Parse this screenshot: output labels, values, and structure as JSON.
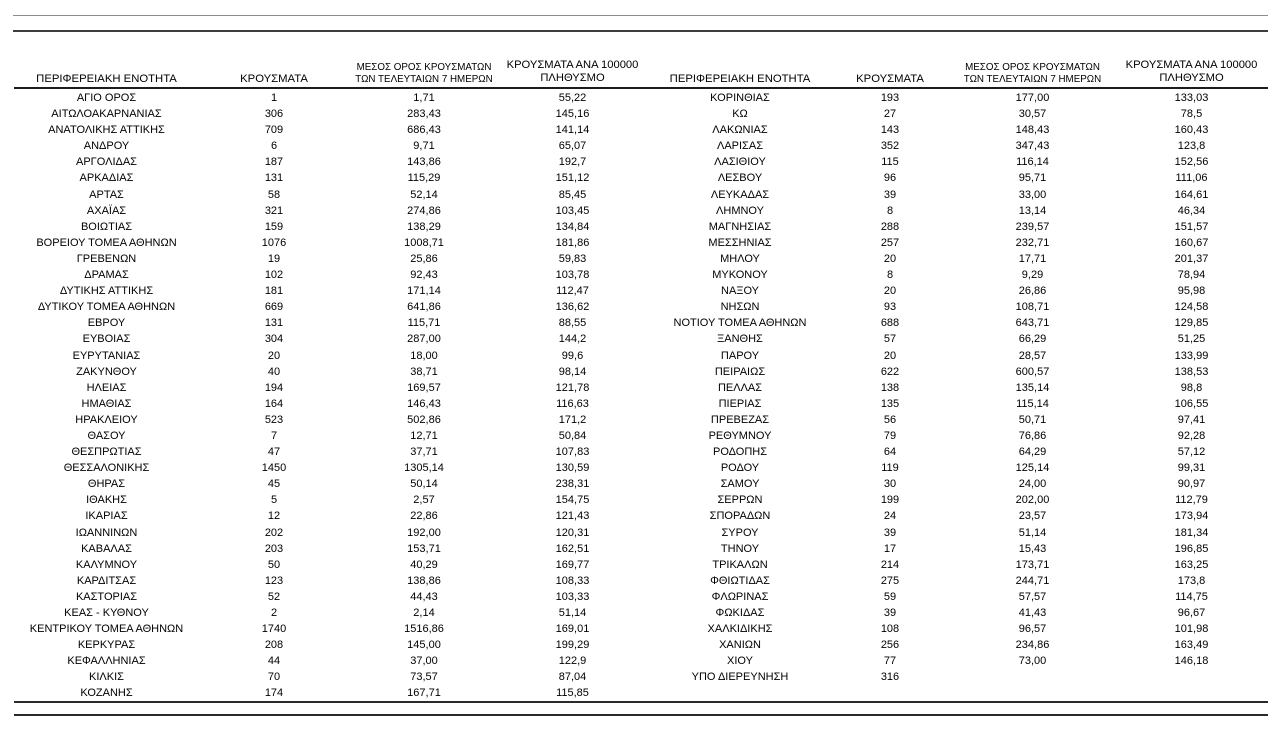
{
  "page": {
    "background": "#ffffff",
    "text_color": "#000000",
    "rule_light": "#8c8c8c",
    "rule_dark": "#2a2a2a"
  },
  "headers": {
    "region": "ΠΕΡΙΦΕΡΕΙΑΚΗ ΕΝΟΤΗΤΑ",
    "cases": "ΚΡΟΥΣΜΑΤΑ",
    "avg7_line1": "ΜΕΣΟΣ ΟΡΟΣ ΚΡΟΥΣΜΑΤΩΝ",
    "avg7_line2": "ΤΩΝ ΤΕΛΕΥΤΑΙΩΝ 7 ΗΜΕΡΩΝ",
    "per100k_line1": "ΚΡΟΥΣΜΑΤΑ ΑΝΑ 100000",
    "per100k_line2": "ΠΛΗΘΥΣΜΟ"
  },
  "left_table": {
    "rows": [
      [
        "ΑΓΙΟ ΟΡΟΣ",
        "1",
        "1,71",
        "55,22"
      ],
      [
        "ΑΙΤΩΛΟΑΚΑΡΝΑΝΙΑΣ",
        "306",
        "283,43",
        "145,16"
      ],
      [
        "ΑΝΑΤΟΛΙΚΗΣ ΑΤΤΙΚΗΣ",
        "709",
        "686,43",
        "141,14"
      ],
      [
        "ΑΝΔΡΟΥ",
        "6",
        "9,71",
        "65,07"
      ],
      [
        "ΑΡΓΟΛΙΔΑΣ",
        "187",
        "143,86",
        "192,7"
      ],
      [
        "ΑΡΚΑΔΙΑΣ",
        "131",
        "115,29",
        "151,12"
      ],
      [
        "ΑΡΤΑΣ",
        "58",
        "52,14",
        "85,45"
      ],
      [
        "ΑΧΑΪΑΣ",
        "321",
        "274,86",
        "103,45"
      ],
      [
        "ΒΟΙΩΤΙΑΣ",
        "159",
        "138,29",
        "134,84"
      ],
      [
        "ΒΟΡΕΙΟΥ ΤΟΜΕΑ ΑΘΗΝΩΝ",
        "1076",
        "1008,71",
        "181,86"
      ],
      [
        "ΓΡΕΒΕΝΩΝ",
        "19",
        "25,86",
        "59,83"
      ],
      [
        "ΔΡΑΜΑΣ",
        "102",
        "92,43",
        "103,78"
      ],
      [
        "ΔΥΤΙΚΗΣ ΑΤΤΙΚΗΣ",
        "181",
        "171,14",
        "112,47"
      ],
      [
        "ΔΥΤΙΚΟΥ ΤΟΜΕΑ ΑΘΗΝΩΝ",
        "669",
        "641,86",
        "136,62"
      ],
      [
        "ΕΒΡΟΥ",
        "131",
        "115,71",
        "88,55"
      ],
      [
        "ΕΥΒΟΙΑΣ",
        "304",
        "287,00",
        "144,2"
      ],
      [
        "ΕΥΡΥΤΑΝΙΑΣ",
        "20",
        "18,00",
        "99,6"
      ],
      [
        "ΖΑΚΥΝΘΟΥ",
        "40",
        "38,71",
        "98,14"
      ],
      [
        "ΗΛΕΙΑΣ",
        "194",
        "169,57",
        "121,78"
      ],
      [
        "ΗΜΑΘΙΑΣ",
        "164",
        "146,43",
        "116,63"
      ],
      [
        "ΗΡΑΚΛΕΙΟΥ",
        "523",
        "502,86",
        "171,2"
      ],
      [
        "ΘΑΣΟΥ",
        "7",
        "12,71",
        "50,84"
      ],
      [
        "ΘΕΣΠΡΩΤΙΑΣ",
        "47",
        "37,71",
        "107,83"
      ],
      [
        "ΘΕΣΣΑΛΟΝΙΚΗΣ",
        "1450",
        "1305,14",
        "130,59"
      ],
      [
        "ΘΗΡΑΣ",
        "45",
        "50,14",
        "238,31"
      ],
      [
        "ΙΘΑΚΗΣ",
        "5",
        "2,57",
        "154,75"
      ],
      [
        "ΙΚΑΡΙΑΣ",
        "12",
        "22,86",
        "121,43"
      ],
      [
        "ΙΩΑΝΝΙΝΩΝ",
        "202",
        "192,00",
        "120,31"
      ],
      [
        "ΚΑΒΑΛΑΣ",
        "203",
        "153,71",
        "162,51"
      ],
      [
        "ΚΑΛΥΜΝΟΥ",
        "50",
        "40,29",
        "169,77"
      ],
      [
        "ΚΑΡΔΙΤΣΑΣ",
        "123",
        "138,86",
        "108,33"
      ],
      [
        "ΚΑΣΤΟΡΙΑΣ",
        "52",
        "44,43",
        "103,33"
      ],
      [
        "ΚΕΑΣ - ΚΥΘΝΟΥ",
        "2",
        "2,14",
        "51,14"
      ],
      [
        "ΚΕΝΤΡΙΚΟΥ ΤΟΜΕΑ ΑΘΗΝΩΝ",
        "1740",
        "1516,86",
        "169,01"
      ],
      [
        "ΚΕΡΚΥΡΑΣ",
        "208",
        "145,00",
        "199,29"
      ],
      [
        "ΚΕΦΑΛΛΗΝΙΑΣ",
        "44",
        "37,00",
        "122,9"
      ],
      [
        "ΚΙΛΚΙΣ",
        "70",
        "73,57",
        "87,04"
      ],
      [
        "ΚΟΖΑΝΗΣ",
        "174",
        "167,71",
        "115,85"
      ]
    ]
  },
  "right_table": {
    "rows": [
      [
        "ΚΟΡΙΝΘΙΑΣ",
        "193",
        "177,00",
        "133,03"
      ],
      [
        "ΚΩ",
        "27",
        "30,57",
        "78,5"
      ],
      [
        "ΛΑΚΩΝΙΑΣ",
        "143",
        "148,43",
        "160,43"
      ],
      [
        "ΛΑΡΙΣΑΣ",
        "352",
        "347,43",
        "123,8"
      ],
      [
        "ΛΑΣΙΘΙΟΥ",
        "115",
        "116,14",
        "152,56"
      ],
      [
        "ΛΕΣΒΟΥ",
        "96",
        "95,71",
        "111,06"
      ],
      [
        "ΛΕΥΚΑΔΑΣ",
        "39",
        "33,00",
        "164,61"
      ],
      [
        "ΛΗΜΝΟΥ",
        "8",
        "13,14",
        "46,34"
      ],
      [
        "ΜΑΓΝΗΣΙΑΣ",
        "288",
        "239,57",
        "151,57"
      ],
      [
        "ΜΕΣΣΗΝΙΑΣ",
        "257",
        "232,71",
        "160,67"
      ],
      [
        "ΜΗΛΟΥ",
        "20",
        "17,71",
        "201,37"
      ],
      [
        "ΜΥΚΟΝΟΥ",
        "8",
        "9,29",
        "78,94"
      ],
      [
        "ΝΑΞΟΥ",
        "20",
        "26,86",
        "95,98"
      ],
      [
        "ΝΗΣΩΝ",
        "93",
        "108,71",
        "124,58"
      ],
      [
        "ΝΟΤΙΟΥ ΤΟΜΕΑ ΑΘΗΝΩΝ",
        "688",
        "643,71",
        "129,85"
      ],
      [
        "ΞΑΝΘΗΣ",
        "57",
        "66,29",
        "51,25"
      ],
      [
        "ΠΑΡΟΥ",
        "20",
        "28,57",
        "133,99"
      ],
      [
        "ΠΕΙΡΑΙΩΣ",
        "622",
        "600,57",
        "138,53"
      ],
      [
        "ΠΕΛΛΑΣ",
        "138",
        "135,14",
        "98,8"
      ],
      [
        "ΠΙΕΡΙΑΣ",
        "135",
        "115,14",
        "106,55"
      ],
      [
        "ΠΡΕΒΕΖΑΣ",
        "56",
        "50,71",
        "97,41"
      ],
      [
        "ΡΕΘΥΜΝΟΥ",
        "79",
        "76,86",
        "92,28"
      ],
      [
        "ΡΟΔΟΠΗΣ",
        "64",
        "64,29",
        "57,12"
      ],
      [
        "ΡΟΔΟΥ",
        "119",
        "125,14",
        "99,31"
      ],
      [
        "ΣΑΜΟΥ",
        "30",
        "24,00",
        "90,97"
      ],
      [
        "ΣΕΡΡΩΝ",
        "199",
        "202,00",
        "112,79"
      ],
      [
        "ΣΠΟΡΑΔΩΝ",
        "24",
        "23,57",
        "173,94"
      ],
      [
        "ΣΥΡΟΥ",
        "39",
        "51,14",
        "181,34"
      ],
      [
        "ΤΗΝΟΥ",
        "17",
        "15,43",
        "196,85"
      ],
      [
        "ΤΡΙΚΑΛΩΝ",
        "214",
        "173,71",
        "163,25"
      ],
      [
        "ΦΘΙΩΤΙΔΑΣ",
        "275",
        "244,71",
        "173,8"
      ],
      [
        "ΦΛΩΡΙΝΑΣ",
        "59",
        "57,57",
        "114,75"
      ],
      [
        "ΦΩΚΙΔΑΣ",
        "39",
        "41,43",
        "96,67"
      ],
      [
        "ΧΑΛΚΙΔΙΚΗΣ",
        "108",
        "96,57",
        "101,98"
      ],
      [
        "ΧΑΝΙΩΝ",
        "256",
        "234,86",
        "163,49"
      ],
      [
        "ΧΙΟΥ",
        "77",
        "73,00",
        "146,18"
      ],
      [
        "ΥΠΟ ΔΙΕΡΕΥΝΗΣΗ",
        "316",
        "",
        ""
      ]
    ]
  }
}
